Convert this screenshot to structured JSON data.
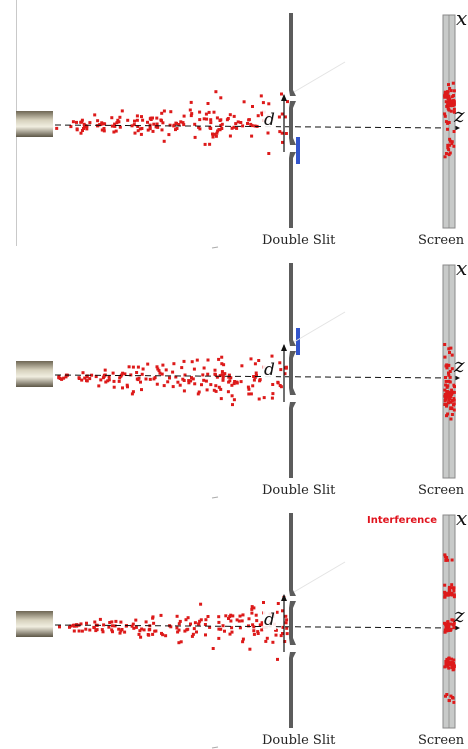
{
  "colors": {
    "particle": "#dd1a1a",
    "detector": "#3355cc",
    "slit_wall": "#5c5c5c",
    "screen_fill": "#c8cac9",
    "interference_label": "#e0141e"
  },
  "labels": {
    "slit": "Double Slit",
    "screen": "Screen",
    "axis_x": "x",
    "axis_z": "z",
    "slit_spacing": "d"
  },
  "panels": [
    {
      "id": "panel-1",
      "detector": "lower-slit",
      "pattern": "single-band-upper",
      "tag": ""
    },
    {
      "id": "panel-2",
      "detector": "upper-slit",
      "pattern": "single-band-lower",
      "tag": ""
    },
    {
      "id": "panel-3",
      "detector": "none",
      "pattern": "interference",
      "tag": "Interference"
    }
  ]
}
